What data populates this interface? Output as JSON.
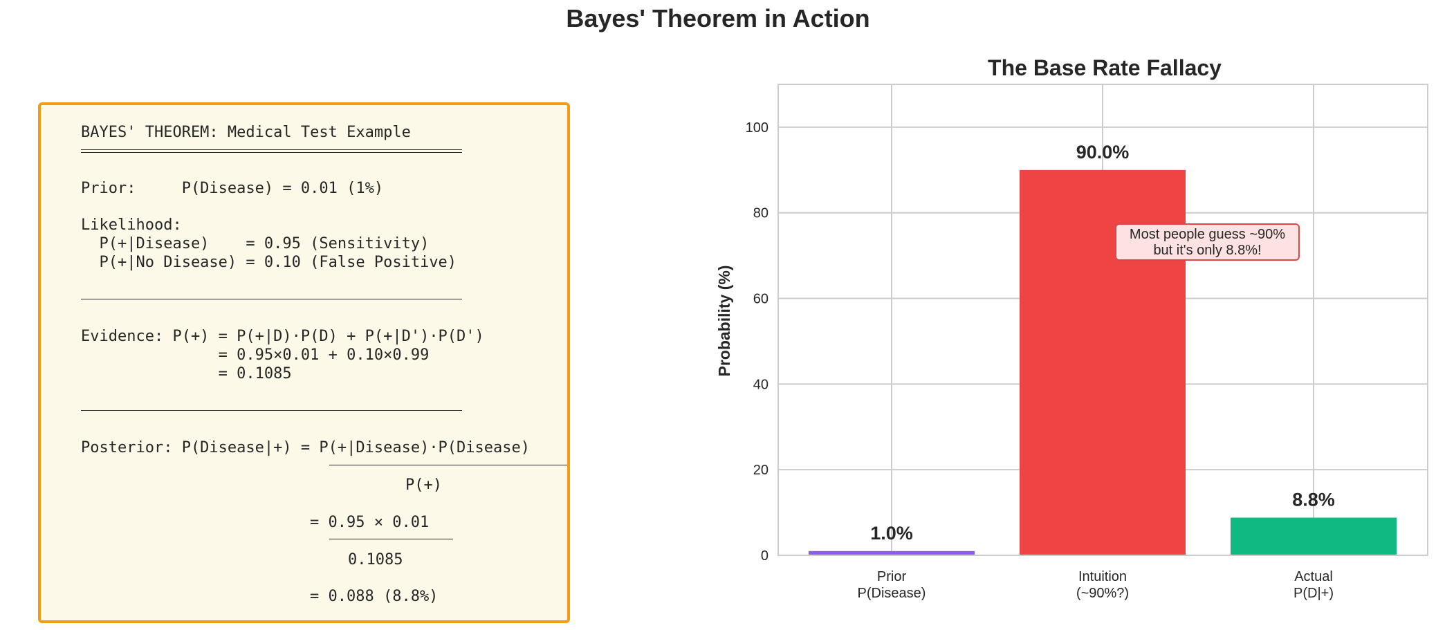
{
  "suptitle": "Bayes' Theorem in Action",
  "formula_box": {
    "heading": "BAYES' THEOREM: Medical Test Example",
    "prior": "Prior:     P(Disease) = 0.01 (1%)",
    "likelihood_title": "Likelihood:",
    "likelihood_sens": "  P(+|Disease)    = 0.95 (Sensitivity)",
    "likelihood_fp": "  P(+|No Disease) = 0.10 (False Positive)",
    "evidence_1": "Evidence: P(+) = P(+|D)·P(D) + P(+|D')·P(D')",
    "evidence_2": "               = 0.95×0.01 + 0.10×0.99",
    "evidence_3": "               = 0.1085",
    "posterior_1": "Posterior: P(Disease|+) = P(+|Disease)·P(Disease)",
    "posterior_denom": "P(+)",
    "posterior_num_2": "= 0.95 × 0.01",
    "posterior_denom_2": "0.1085",
    "posterior_result": "= 0.088 (8.8%)"
  },
  "colors": {
    "box_border": "#f39c12",
    "box_fill": "#fdf9e9",
    "prior_bar": "#8b5cf6",
    "intuition_bar": "#ef4444",
    "actual_bar": "#10b981"
  },
  "chart_data": {
    "type": "bar",
    "title": "The Base Rate Fallacy",
    "xlabel": "",
    "ylabel": "Probability (%)",
    "ylim": [
      0,
      110
    ],
    "yticks": [
      0,
      20,
      40,
      60,
      80,
      100
    ],
    "grid": true,
    "categories": [
      "Prior\nP(Disease)",
      "Intuition\n(~90%?)",
      "Actual\nP(D|+)"
    ],
    "values": [
      1.0,
      90.0,
      8.8
    ],
    "value_labels": [
      "1.0%",
      "90.0%",
      "8.8%"
    ],
    "bar_colors": [
      "#8b5cf6",
      "#ef4444",
      "#10b981"
    ],
    "annotation": {
      "text_line_1": "Most people guess ~90%",
      "text_line_2": "but it's only 8.8%!"
    }
  }
}
